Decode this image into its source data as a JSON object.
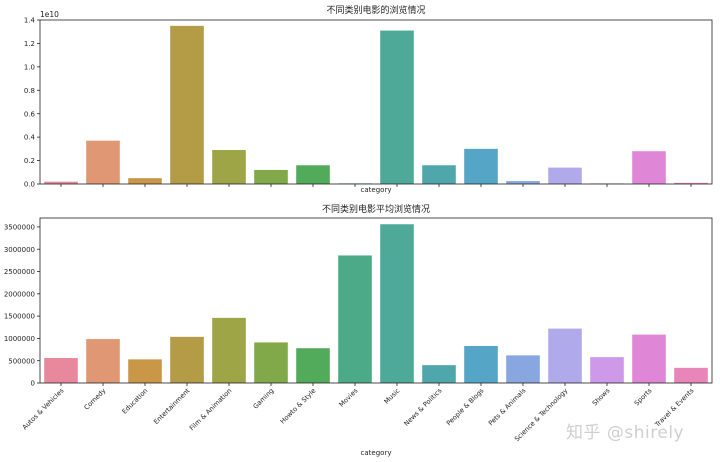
{
  "chart_data": [
    {
      "type": "bar",
      "title": "不同类别电影的浏览情况",
      "xlabel": "category",
      "ylabel": "",
      "offset_label": "1e10",
      "ylim": [
        0,
        1.4
      ],
      "yticks": [
        "0.0",
        "0.2",
        "0.4",
        "0.6",
        "0.8",
        "1.0",
        "1.2",
        "1.4"
      ],
      "show_x_tick_labels": false,
      "categories": [
        "Autos & Vehicles",
        "Comedy",
        "Education",
        "Entertainment",
        "Film & Animation",
        "Gaming",
        "Howto & Style",
        "Movies",
        "Music",
        "News & Politics",
        "People & Blogs",
        "Pets & Animals",
        "Science & Technology",
        "Shows",
        "Sports",
        "Travel & Events"
      ],
      "values": [
        0.02,
        0.37,
        0.05,
        1.35,
        0.29,
        0.12,
        0.16,
        0.005,
        1.31,
        0.16,
        0.3,
        0.025,
        0.14,
        0.005,
        0.28,
        0.01
      ],
      "grid": false,
      "legend": "none"
    },
    {
      "type": "bar",
      "title": "不同类别电影平均浏览情况",
      "xlabel": "category",
      "ylabel": "",
      "ylim": [
        0,
        3700000
      ],
      "yticks": [
        "0",
        "500000",
        "1000000",
        "1500000",
        "2000000",
        "2500000",
        "3000000",
        "3500000"
      ],
      "show_x_tick_labels": true,
      "categories": [
        "Autos & Vehicles",
        "Comedy",
        "Education",
        "Entertainment",
        "Film & Animation",
        "Gaming",
        "Howto & Style",
        "Movies",
        "Music",
        "News & Politics",
        "People & Blogs",
        "Pets & Animals",
        "Science & Technology",
        "Shows",
        "Sports",
        "Travel & Events"
      ],
      "values": [
        560000,
        985000,
        530000,
        1035000,
        1460000,
        910000,
        780000,
        2860000,
        3560000,
        400000,
        830000,
        620000,
        1220000,
        580000,
        1085000,
        340000
      ],
      "grid": false,
      "legend": "none"
    }
  ],
  "colors": [
    "#e8889c",
    "#df9873",
    "#c99747",
    "#b49b45",
    "#9da547",
    "#81a949",
    "#52aa5b",
    "#4caa88",
    "#4ea998",
    "#4fa7ac",
    "#55a5c6",
    "#88a7e0",
    "#b0a9ea",
    "#cf99e9",
    "#df86d6",
    "#e886b9"
  ],
  "watermark": "知乎 @shirely"
}
